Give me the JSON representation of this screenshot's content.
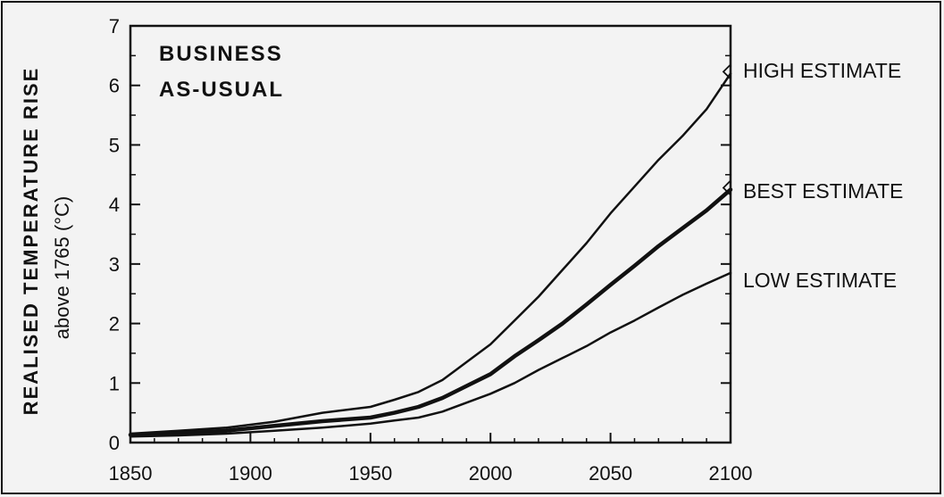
{
  "chart_data": {
    "type": "line",
    "xlim": [
      1850,
      2100
    ],
    "ylim": [
      0,
      7
    ],
    "x_ticks": [
      1850,
      1900,
      1950,
      2000,
      2050,
      2100
    ],
    "y_ticks": [
      0,
      1,
      2,
      3,
      4,
      5,
      6,
      7
    ],
    "x_tick_labels": [
      "1850",
      "1900",
      "1950",
      "2000",
      "2050",
      "2100"
    ],
    "y_tick_labels": [
      "0",
      "1",
      "2",
      "3",
      "4",
      "5",
      "6",
      "7"
    ],
    "ylabel": "REALISED TEMPERATURE RISE",
    "ylabel_sub": "above 1765 (°C)",
    "panel_text": [
      "BUSINESS",
      "AS-USUAL"
    ],
    "grid": false,
    "series": [
      {
        "name": "HIGH ESTIMATE",
        "x": [
          1850,
          1870,
          1890,
          1910,
          1930,
          1950,
          1960,
          1970,
          1980,
          1990,
          2000,
          2010,
          2020,
          2030,
          2040,
          2050,
          2060,
          2070,
          2080,
          2090,
          2100
        ],
        "y": [
          0.15,
          0.2,
          0.25,
          0.35,
          0.5,
          0.6,
          0.72,
          0.85,
          1.05,
          1.35,
          1.65,
          2.05,
          2.45,
          2.9,
          3.35,
          3.85,
          4.3,
          4.75,
          5.15,
          5.6,
          6.2
        ]
      },
      {
        "name": "BEST ESTIMATE",
        "x": [
          1850,
          1870,
          1890,
          1910,
          1930,
          1950,
          1960,
          1970,
          1980,
          1990,
          2000,
          2010,
          2020,
          2030,
          2040,
          2050,
          2060,
          2070,
          2080,
          2090,
          2100
        ],
        "y": [
          0.13,
          0.16,
          0.2,
          0.28,
          0.36,
          0.42,
          0.5,
          0.6,
          0.75,
          0.95,
          1.15,
          1.45,
          1.72,
          2.0,
          2.32,
          2.65,
          2.97,
          3.3,
          3.6,
          3.9,
          4.25
        ]
      },
      {
        "name": "LOW ESTIMATE",
        "x": [
          1850,
          1870,
          1890,
          1910,
          1930,
          1950,
          1960,
          1970,
          1980,
          1990,
          2000,
          2010,
          2020,
          2030,
          2040,
          2050,
          2060,
          2070,
          2080,
          2090,
          2100
        ],
        "y": [
          0.1,
          0.12,
          0.15,
          0.2,
          0.25,
          0.32,
          0.37,
          0.42,
          0.52,
          0.67,
          0.82,
          1.0,
          1.22,
          1.42,
          1.62,
          1.85,
          2.05,
          2.27,
          2.48,
          2.67,
          2.85
        ]
      }
    ]
  }
}
